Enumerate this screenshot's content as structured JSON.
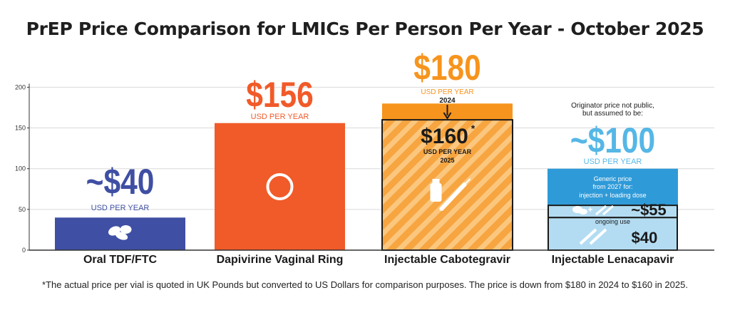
{
  "title": "PrEP Price Comparison for LMICs Per Person Per Year - October 2025",
  "footnote": "*The actual price per vial is quoted in UK Pounds but converted to US Dollars for comparison purposes. The price is down from $180 in 2024 to $160 in 2025.",
  "colors": {
    "oral": "#3f4fa3",
    "ring": "#f15a29",
    "cab": "#f7a540",
    "cab_2024": "#f7941d",
    "lena": "#2f9ad8",
    "lena_light": "#b3dcf2",
    "lena_text": "#55b7e6",
    "axis": "#333333",
    "grid": "#d9d9d9"
  },
  "annotations": {
    "usd_per_year": "USD PER YEAR",
    "oral_price": "~$40",
    "ring_price": "$156",
    "cab_price_2024": "$180",
    "cab_year_2024": "2024",
    "cab_price_2025": "$160",
    "cab_star": "*",
    "cab_year_2025": "2025",
    "lena_note_line1": "Originator price not public,",
    "lena_note_line2": "but assumed to be:",
    "lena_price": "~$100",
    "lena_generic_line1": "Generic price",
    "lena_generic_line2": "from 2027 for:",
    "lena_generic_line3": "injection + loading dose",
    "lena_plus": "+",
    "lena_loading_price": "~$55",
    "lena_ongoing_label": "ongoing use",
    "lena_ongoing_price": "$40"
  },
  "icons": [
    "pills-icon",
    "ring-icon",
    "vial-syringe-icon",
    "pills-syringe-icon",
    "syringe-icon"
  ],
  "chart_data": {
    "type": "bar",
    "categories": [
      "Oral TDF/FTC",
      "Dapivirine Vaginal Ring",
      "Injectable Cabotegravir",
      "Injectable Lenacapavir"
    ],
    "series": [
      {
        "name": "",
        "values": [
          40,
          156,
          160,
          100
        ]
      }
    ],
    "cabotegravir_2024_value": 180,
    "lenacapavir_generic_values": {
      "injection_plus_loading_dose": 55,
      "ongoing_use": 40
    },
    "yticks": [
      0,
      50,
      100,
      150,
      200
    ],
    "ylim": [
      0,
      200
    ],
    "grid": true,
    "xlabel": "",
    "ylabel": ""
  }
}
